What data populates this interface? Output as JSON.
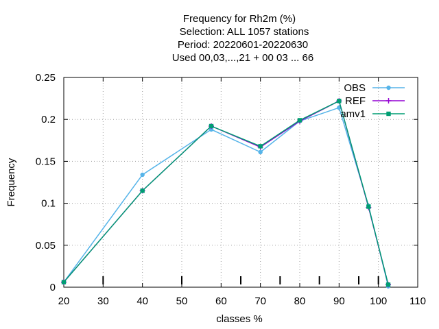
{
  "chart_data": {
    "type": "line",
    "title_lines": [
      "Frequency  for Rh2m (%)",
      "Selection: ALL   1057 stations",
      "Period: 20220601-20220630",
      "Used  00,03,...,21  + 00 03 ... 66"
    ],
    "xlabel": "classes %",
    "ylabel": "Frequency",
    "xlim": [
      20,
      110
    ],
    "ylim": [
      0,
      0.25
    ],
    "xticks": [
      "20",
      "30",
      "40",
      "50",
      "60",
      "70",
      "80",
      "90",
      "100",
      "110"
    ],
    "yticks": [
      "0",
      "0.05",
      "0.1",
      "0.15",
      "0.2",
      "0.25"
    ],
    "grid": true,
    "legend_position": "top-right",
    "class_marks": [
      30,
      50,
      65,
      75,
      85,
      95,
      100
    ],
    "series": [
      {
        "name": "OBS",
        "color": "#56b4e9",
        "marker": "circle",
        "x": [
          20,
          40,
          57.5,
          70,
          80,
          90,
          97.5,
          102.5
        ],
        "y": [
          0.006,
          0.134,
          0.188,
          0.161,
          0.198,
          0.214,
          0.097,
          0.001
        ]
      },
      {
        "name": "REF",
        "color": "#9400d3",
        "marker": "plus",
        "x": [
          20,
          40,
          57.5,
          70,
          80,
          90,
          97.5,
          102.5
        ],
        "y": [
          0.006,
          0.115,
          0.192,
          0.167,
          0.198,
          0.222,
          0.095,
          0.003
        ]
      },
      {
        "name": "amv1",
        "color": "#009e73",
        "marker": "square",
        "x": [
          20,
          40,
          57.5,
          70,
          80,
          90,
          97.5,
          102.5
        ],
        "y": [
          0.006,
          0.115,
          0.192,
          0.168,
          0.199,
          0.222,
          0.096,
          0.003
        ]
      }
    ]
  }
}
